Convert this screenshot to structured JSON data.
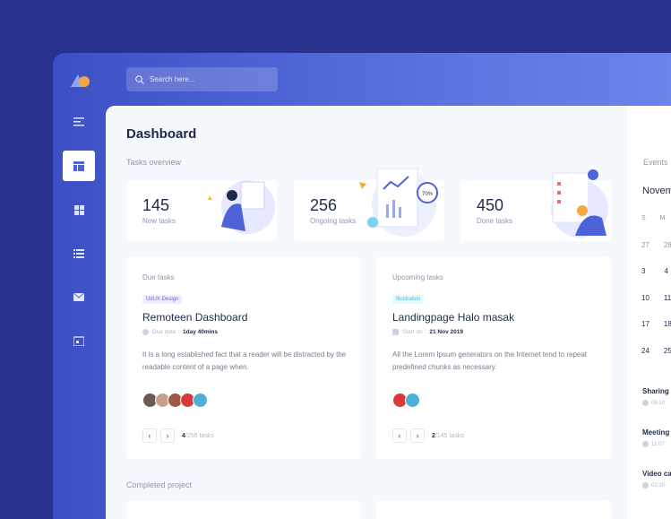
{
  "search": {
    "placeholder": "Search here..."
  },
  "sidebar": {
    "items": [
      {
        "icon": "menu-icon"
      },
      {
        "icon": "dashboard-icon",
        "active": true
      },
      {
        "icon": "grid-icon"
      },
      {
        "icon": "list-icon"
      },
      {
        "icon": "mail-icon"
      },
      {
        "icon": "calendar-icon"
      }
    ]
  },
  "main": {
    "title": "Dashboard",
    "overview_label": "Tasks overview",
    "completed_label": "Completed project",
    "stats": [
      {
        "value": "145",
        "label": "New tasks"
      },
      {
        "value": "256",
        "label": "Ongoing tasks",
        "badge": "70%"
      },
      {
        "value": "450",
        "label": "Done tasks"
      }
    ],
    "due": {
      "header": "Due tasks",
      "tag": "UI/UX Design",
      "title": "Remoteen Dashboard",
      "meta_label": "Due date :",
      "meta_value": "1day 40mins",
      "desc": "It is a long established fact that a reader will be distracted by the readable content of a page when.",
      "page": "4",
      "total": "/256 tasks"
    },
    "upcoming": {
      "header": "Upcoming tasks",
      "tag": "Illustration",
      "title": "Landingpage Halo masak",
      "meta_label": "Start on :",
      "meta_value": "21 Nov 2019",
      "desc": "All the Lorem Ipsum generators on the Internet tend to repeat predefined chunks as necessary.",
      "page": "2",
      "total": "/145 tasks"
    }
  },
  "events": {
    "label": "Events",
    "month": "November",
    "days": [
      "S",
      "M"
    ],
    "rows": [
      [
        "27",
        "28"
      ],
      [
        "3",
        "4"
      ],
      [
        "10",
        "11"
      ],
      [
        "17",
        "18"
      ],
      [
        "24",
        "25"
      ]
    ],
    "items": [
      {
        "title": "Sharing",
        "time": "09:10"
      },
      {
        "title": "Meeting",
        "time": "11:07"
      },
      {
        "title": "Video call",
        "time": "02:15"
      }
    ]
  },
  "colors": {
    "accent": "#4f63d8",
    "background": "#27338f"
  }
}
